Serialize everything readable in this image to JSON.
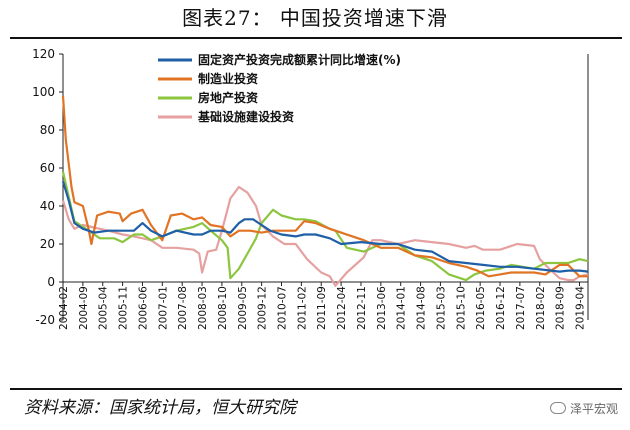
{
  "title": "图表27：    中国投资增速下滑",
  "source": "资料来源：国家统计局，恒大研究院",
  "watermark": "泽平宏观",
  "chart_data": {
    "type": "line",
    "ylim": [
      -20,
      120
    ],
    "yticks": [
      -20,
      0,
      20,
      40,
      60,
      80,
      100,
      120
    ],
    "x_start": "2004-02",
    "x_end": "2019-07",
    "x_tick_labels": [
      "2004-02",
      "2004-09",
      "2005-04",
      "2005-11",
      "2006-06",
      "2007-01",
      "2007-08",
      "2008-03",
      "2008-10",
      "2009-05",
      "2009-12",
      "2010-07",
      "2011-02",
      "2011-09",
      "2012-04",
      "2012-11",
      "2013-06",
      "2014-01",
      "2014-08",
      "2015-03",
      "2015-10",
      "2016-05",
      "2016-12",
      "2017-07",
      "2018-02",
      "2018-09",
      "2019-04"
    ],
    "legend_position": "top-center",
    "series": [
      {
        "name": "固定资产投资完成额累计同比增速(%)",
        "color": "#1f5fa6",
        "points": [
          [
            "2004-02",
            53
          ],
          [
            "2004-04",
            43
          ],
          [
            "2004-06",
            31
          ],
          [
            "2004-09",
            28
          ],
          [
            "2005-01",
            26
          ],
          [
            "2005-06",
            27
          ],
          [
            "2005-11",
            27
          ],
          [
            "2006-03",
            27
          ],
          [
            "2006-06",
            31
          ],
          [
            "2006-09",
            27
          ],
          [
            "2007-01",
            24
          ],
          [
            "2007-06",
            27
          ],
          [
            "2007-12",
            25
          ],
          [
            "2008-03",
            25
          ],
          [
            "2008-06",
            27
          ],
          [
            "2008-10",
            27
          ],
          [
            "2009-01",
            26
          ],
          [
            "2009-04",
            31
          ],
          [
            "2009-06",
            33
          ],
          [
            "2009-09",
            33
          ],
          [
            "2009-12",
            30
          ],
          [
            "2010-03",
            27
          ],
          [
            "2010-07",
            25
          ],
          [
            "2010-12",
            24
          ],
          [
            "2011-03",
            25
          ],
          [
            "2011-07",
            25
          ],
          [
            "2011-12",
            23
          ],
          [
            "2012-04",
            20
          ],
          [
            "2012-11",
            21
          ],
          [
            "2013-06",
            20
          ],
          [
            "2013-12",
            20
          ],
          [
            "2014-06",
            17
          ],
          [
            "2014-12",
            16
          ],
          [
            "2015-06",
            11
          ],
          [
            "2015-12",
            10
          ],
          [
            "2016-06",
            9
          ],
          [
            "2016-12",
            8
          ],
          [
            "2017-06",
            8
          ],
          [
            "2017-12",
            7
          ],
          [
            "2018-06",
            6
          ],
          [
            "2018-09",
            5.5
          ],
          [
            "2018-12",
            6
          ],
          [
            "2019-04",
            6
          ],
          [
            "2019-07",
            5.5
          ]
        ]
      },
      {
        "name": "制造业投资",
        "color": "#e07424",
        "points": [
          [
            "2004-02",
            98
          ],
          [
            "2004-03",
            75
          ],
          [
            "2004-05",
            50
          ],
          [
            "2004-06",
            42
          ],
          [
            "2004-09",
            40
          ],
          [
            "2004-11",
            28
          ],
          [
            "2004-12",
            20
          ],
          [
            "2005-02",
            35
          ],
          [
            "2005-06",
            37
          ],
          [
            "2005-10",
            36
          ],
          [
            "2005-11",
            32
          ],
          [
            "2006-02",
            36
          ],
          [
            "2006-06",
            38
          ],
          [
            "2006-09",
            30
          ],
          [
            "2007-01",
            22
          ],
          [
            "2007-04",
            35
          ],
          [
            "2007-08",
            36
          ],
          [
            "2007-12",
            33
          ],
          [
            "2008-03",
            34
          ],
          [
            "2008-06",
            30
          ],
          [
            "2008-10",
            29
          ],
          [
            "2009-01",
            24
          ],
          [
            "2009-04",
            27
          ],
          [
            "2009-08",
            27
          ],
          [
            "2009-12",
            26
          ],
          [
            "2010-04",
            27
          ],
          [
            "2010-08",
            27
          ],
          [
            "2010-12",
            27
          ],
          [
            "2011-03",
            32
          ],
          [
            "2011-07",
            31
          ],
          [
            "2011-12",
            28
          ],
          [
            "2012-02",
            27
          ],
          [
            "2012-08",
            24
          ],
          [
            "2012-12",
            22
          ],
          [
            "2013-06",
            18
          ],
          [
            "2013-12",
            18
          ],
          [
            "2014-06",
            14
          ],
          [
            "2014-12",
            13
          ],
          [
            "2015-06",
            10
          ],
          [
            "2015-12",
            8
          ],
          [
            "2016-04",
            6
          ],
          [
            "2016-08",
            3
          ],
          [
            "2016-12",
            4
          ],
          [
            "2017-04",
            5
          ],
          [
            "2017-12",
            5
          ],
          [
            "2018-04",
            4
          ],
          [
            "2018-09",
            9
          ],
          [
            "2018-12",
            9
          ],
          [
            "2019-02",
            6
          ],
          [
            "2019-04",
            3
          ],
          [
            "2019-07",
            3
          ]
        ]
      },
      {
        "name": "房地产投资",
        "color": "#8cc63f",
        "points": [
          [
            "2004-02",
            58
          ],
          [
            "2004-04",
            45
          ],
          [
            "2004-06",
            32
          ],
          [
            "2004-09",
            29
          ],
          [
            "2005-03",
            23
          ],
          [
            "2005-08",
            23
          ],
          [
            "2005-11",
            21
          ],
          [
            "2006-03",
            25
          ],
          [
            "2006-06",
            25
          ],
          [
            "2006-09",
            22
          ],
          [
            "2007-01",
            24
          ],
          [
            "2007-06",
            27
          ],
          [
            "2007-12",
            29
          ],
          [
            "2008-03",
            31
          ],
          [
            "2008-06",
            27
          ],
          [
            "2008-10",
            22
          ],
          [
            "2008-12",
            18
          ],
          [
            "2009-01",
            2
          ],
          [
            "2009-04",
            7
          ],
          [
            "2009-07",
            15
          ],
          [
            "2009-10",
            23
          ],
          [
            "2009-12",
            31
          ],
          [
            "2010-04",
            38
          ],
          [
            "2010-07",
            35
          ],
          [
            "2010-12",
            33
          ],
          [
            "2011-03",
            33
          ],
          [
            "2011-07",
            32
          ],
          [
            "2011-12",
            28
          ],
          [
            "2012-02",
            27
          ],
          [
            "2012-06",
            18
          ],
          [
            "2012-12",
            16
          ],
          [
            "2013-06",
            20
          ],
          [
            "2013-12",
            20
          ],
          [
            "2014-06",
            14
          ],
          [
            "2014-12",
            11
          ],
          [
            "2015-06",
            4
          ],
          [
            "2015-12",
            1
          ],
          [
            "2016-03",
            4
          ],
          [
            "2016-07",
            6
          ],
          [
            "2016-12",
            7
          ],
          [
            "2017-04",
            9
          ],
          [
            "2017-12",
            7
          ],
          [
            "2018-04",
            10
          ],
          [
            "2018-09",
            10
          ],
          [
            "2018-12",
            10
          ],
          [
            "2019-04",
            12
          ],
          [
            "2019-07",
            11
          ]
        ]
      },
      {
        "name": "基础设施建设投资",
        "color": "#e6a0a0",
        "points": [
          [
            "2004-02",
            43
          ],
          [
            "2004-04",
            33
          ],
          [
            "2004-06",
            28
          ],
          [
            "2004-09",
            30
          ],
          [
            "2005-03",
            28
          ],
          [
            "2005-06",
            27
          ],
          [
            "2005-11",
            25
          ],
          [
            "2006-03",
            24
          ],
          [
            "2006-06",
            23
          ],
          [
            "2006-09",
            22
          ],
          [
            "2007-01",
            18
          ],
          [
            "2007-06",
            18
          ],
          [
            "2007-12",
            17
          ],
          [
            "2008-02",
            15
          ],
          [
            "2008-03",
            5
          ],
          [
            "2008-05",
            16
          ],
          [
            "2008-08",
            17
          ],
          [
            "2008-10",
            27
          ],
          [
            "2009-01",
            44
          ],
          [
            "2009-04",
            50
          ],
          [
            "2009-07",
            47
          ],
          [
            "2009-10",
            40
          ],
          [
            "2009-12",
            30
          ],
          [
            "2010-04",
            24
          ],
          [
            "2010-08",
            20
          ],
          [
            "2010-12",
            20
          ],
          [
            "2011-04",
            12
          ],
          [
            "2011-09",
            5
          ],
          [
            "2011-12",
            3
          ],
          [
            "2012-02",
            -2
          ],
          [
            "2012-06",
            5
          ],
          [
            "2012-12",
            13
          ],
          [
            "2013-03",
            22
          ],
          [
            "2013-06",
            22
          ],
          [
            "2013-12",
            20
          ],
          [
            "2014-06",
            22
          ],
          [
            "2014-12",
            21
          ],
          [
            "2015-06",
            20
          ],
          [
            "2015-12",
            18
          ],
          [
            "2016-03",
            19
          ],
          [
            "2016-06",
            17
          ],
          [
            "2016-12",
            17
          ],
          [
            "2017-06",
            20
          ],
          [
            "2017-12",
            19
          ],
          [
            "2018-02",
            12
          ],
          [
            "2018-06",
            6
          ],
          [
            "2018-09",
            2
          ],
          [
            "2018-12",
            1
          ],
          [
            "2019-02",
            1
          ],
          [
            "2019-04",
            3
          ],
          [
            "2019-07",
            4
          ]
        ]
      }
    ]
  }
}
